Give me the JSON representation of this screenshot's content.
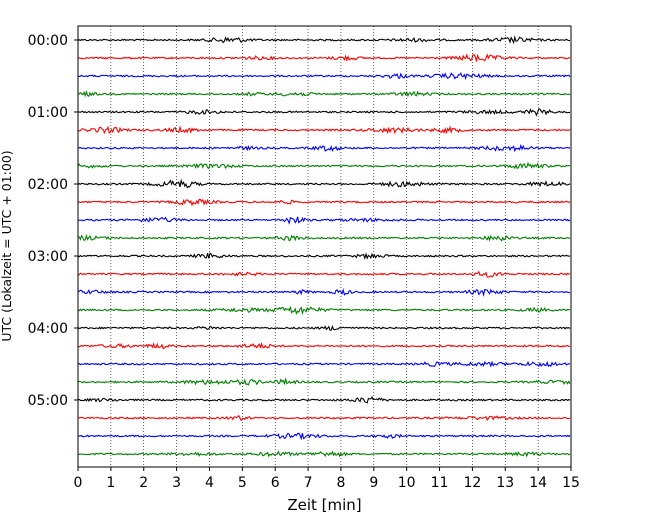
{
  "chart_data": {
    "type": "line",
    "title": "",
    "xlabel": "Zeit  [min]",
    "ylabel": "UTC (Lokalzeit = UTC + 01:00)",
    "xlim": [
      0,
      15
    ],
    "x_ticks": [
      "0",
      "1",
      "2",
      "3",
      "4",
      "5",
      "6",
      "7",
      "8",
      "9",
      "10",
      "11",
      "12",
      "13",
      "14",
      "15"
    ],
    "y_tick_labels": [
      "00:00",
      "01:00",
      "02:00",
      "03:00",
      "04:00",
      "05:00"
    ],
    "rows_per_hour": 4,
    "row_minutes": 15,
    "row_count": 24,
    "color_cycle": [
      "#000000",
      "#ff0000",
      "#0000ff",
      "#008000"
    ],
    "vertical_grid": "dotted",
    "legend": "none"
  }
}
